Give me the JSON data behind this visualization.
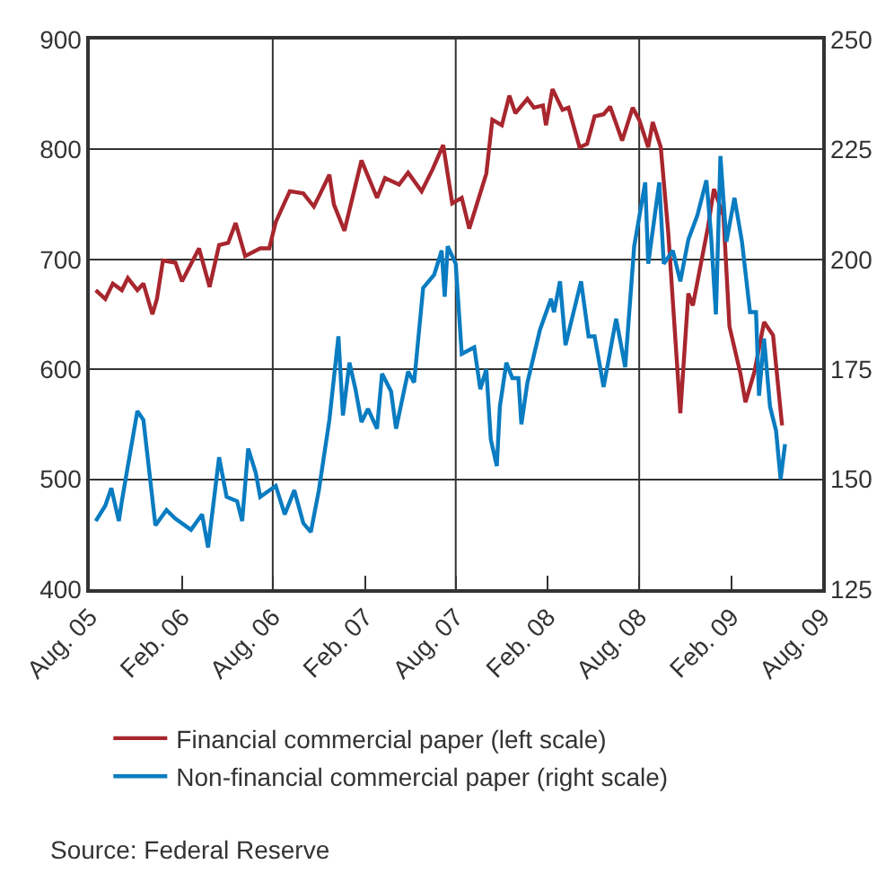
{
  "chart_data": {
    "type": "line",
    "xlim": [
      "2005-08-01",
      "2009-08-01"
    ],
    "xticks": [
      {
        "value": "2005-08-01",
        "label": "Aug. 05"
      },
      {
        "value": "2006-02-01",
        "label": "Feb. 06"
      },
      {
        "value": "2006-08-01",
        "label": "Aug. 06"
      },
      {
        "value": "2007-02-01",
        "label": "Feb. 07"
      },
      {
        "value": "2007-08-01",
        "label": "Aug. 07"
      },
      {
        "value": "2008-02-01",
        "label": "Feb. 08"
      },
      {
        "value": "2008-08-01",
        "label": "Aug. 08"
      },
      {
        "value": "2009-02-01",
        "label": "Feb. 09"
      },
      {
        "value": "2009-08-01",
        "label": "Aug. 09"
      }
    ],
    "ylim": [
      400,
      900
    ],
    "yticks": [
      400,
      500,
      600,
      700,
      800,
      900
    ],
    "y2lim": [
      125,
      250
    ],
    "y2ticks": [
      125,
      150,
      175,
      200,
      225,
      250
    ],
    "grid": true,
    "legend": "bottom",
    "line_style": "solid",
    "annotations": [
      "Source: Federal Reserve"
    ],
    "series": [
      {
        "name": "Financial commercial paper (left scale)",
        "color": "#a8262e",
        "x": [
          "2005-08-13",
          "2005-09-01",
          "2005-09-16",
          "2005-10-04",
          "2005-10-16",
          "2005-11-04",
          "2005-11-16",
          "2005-12-04",
          "2005-12-13",
          "2005-12-25",
          "2006-01-19",
          "2006-02-01",
          "2006-03-07",
          "2006-03-28",
          "2006-04-16",
          "2006-05-04",
          "2006-05-19",
          "2006-06-07",
          "2006-07-07",
          "2006-07-25",
          "2006-08-07",
          "2006-09-04",
          "2006-10-01",
          "2006-10-22",
          "2006-11-04",
          "2006-11-22",
          "2006-12-01",
          "2006-12-22",
          "2007-01-25",
          "2007-02-25",
          "2007-03-13",
          "2007-04-10",
          "2007-04-28",
          "2007-05-25",
          "2007-06-16",
          "2007-07-07",
          "2007-07-25",
          "2007-08-13",
          "2007-08-28",
          "2007-10-01",
          "2007-10-13",
          "2007-11-01",
          "2007-11-16",
          "2007-11-28",
          "2007-12-22",
          "2008-01-04",
          "2008-01-22",
          "2008-01-28",
          "2008-02-10",
          "2008-03-01",
          "2008-03-13",
          "2008-04-04",
          "2008-04-19",
          "2008-05-04",
          "2008-05-22",
          "2008-06-04",
          "2008-06-28",
          "2008-07-19",
          "2008-08-01",
          "2008-08-19",
          "2008-08-28",
          "2008-09-13",
          "2008-09-28",
          "2008-10-22",
          "2008-11-07",
          "2008-11-16",
          "2008-12-16",
          "2008-12-28",
          "2009-01-16",
          "2009-01-28",
          "2009-02-19",
          "2009-03-01",
          "2009-03-19",
          "2009-04-07",
          "2009-04-25",
          "2009-05-13"
        ],
        "values": [
          672,
          664,
          678,
          672,
          683,
          672,
          678,
          650,
          664,
          699,
          697,
          680,
          710,
          675,
          713,
          715,
          733,
          703,
          710,
          710,
          734,
          762,
          760,
          748,
          760,
          777,
          750,
          726,
          790,
          756,
          774,
          768,
          779,
          762,
          782,
          804,
          751,
          756,
          728,
          778,
          827,
          822,
          849,
          833,
          846,
          838,
          840,
          822,
          855,
          836,
          838,
          802,
          805,
          830,
          832,
          839,
          808,
          838,
          827,
          802,
          825,
          802,
          724,
          560,
          669,
          658,
          729,
          764,
          740,
          639,
          596,
          570,
          598,
          643,
          631,
          549
        ]
      },
      {
        "name": "Non-financial commercial paper (right scale)",
        "color": "#0a7cc1",
        "axis": "y2",
        "x": [
          "2005-08-13",
          "2005-09-01",
          "2005-09-13",
          "2005-09-28",
          "2005-10-04",
          "2005-10-16",
          "2005-11-04",
          "2005-11-16",
          "2005-12-10",
          "2006-01-01",
          "2006-01-19",
          "2006-02-19",
          "2006-03-13",
          "2006-03-25",
          "2006-04-16",
          "2006-05-01",
          "2006-05-22",
          "2006-06-01",
          "2006-06-13",
          "2006-06-28",
          "2006-07-07",
          "2006-08-07",
          "2006-08-25",
          "2006-09-13",
          "2006-10-01",
          "2006-10-16",
          "2006-11-01",
          "2006-11-22",
          "2006-12-10",
          "2006-12-19",
          "2007-01-01",
          "2007-01-13",
          "2007-01-25",
          "2007-02-07",
          "2007-02-25",
          "2007-03-07",
          "2007-03-25",
          "2007-04-04",
          "2007-04-28",
          "2007-05-10",
          "2007-05-28",
          "2007-06-19",
          "2007-07-04",
          "2007-07-10",
          "2007-07-16",
          "2007-08-01",
          "2007-08-13",
          "2007-09-07",
          "2007-09-19",
          "2007-10-01",
          "2007-10-10",
          "2007-10-22",
          "2007-10-28",
          "2007-11-10",
          "2007-11-22",
          "2007-12-04",
          "2007-12-10",
          "2007-12-22",
          "2008-01-16",
          "2008-02-07",
          "2008-02-13",
          "2008-02-25",
          "2008-03-07",
          "2008-04-07",
          "2008-04-22",
          "2008-05-04",
          "2008-05-22",
          "2008-06-16",
          "2008-07-04",
          "2008-07-22",
          "2008-08-13",
          "2008-08-19",
          "2008-09-10",
          "2008-09-19",
          "2008-10-07",
          "2008-10-22",
          "2008-11-07",
          "2008-11-25",
          "2008-12-13",
          "2008-12-22",
          "2009-01-01",
          "2009-01-10",
          "2009-01-22",
          "2009-02-07",
          "2009-02-22",
          "2009-03-10",
          "2009-03-22",
          "2009-03-28",
          "2009-04-07",
          "2009-04-19",
          "2009-05-01",
          "2009-05-10",
          "2009-05-19"
        ],
        "values": [
          140.5,
          144,
          148,
          140.5,
          145,
          153,
          165.5,
          163.5,
          139.5,
          143,
          141,
          138.5,
          142,
          134.5,
          155,
          146,
          145,
          140.5,
          157,
          151.5,
          146,
          148.5,
          142,
          147.5,
          140,
          138,
          147.5,
          163.5,
          182.5,
          164.5,
          176.5,
          170.5,
          163,
          166,
          161.5,
          174,
          170,
          161.5,
          174.5,
          172,
          193.5,
          196.5,
          202,
          191.5,
          203,
          199,
          178.5,
          180,
          170.5,
          175,
          159,
          153,
          166.5,
          176.5,
          173,
          173,
          162.5,
          172,
          184,
          191,
          188,
          195,
          180.5,
          195,
          182.5,
          182.5,
          171,
          186.5,
          175.5,
          203,
          217.5,
          199,
          217.5,
          199,
          202,
          195,
          204.5,
          210,
          218,
          206,
          187.5,
          223.5,
          204,
          214,
          204,
          188,
          188,
          169,
          182,
          166.5,
          161,
          150,
          158
        ]
      }
    ]
  }
}
